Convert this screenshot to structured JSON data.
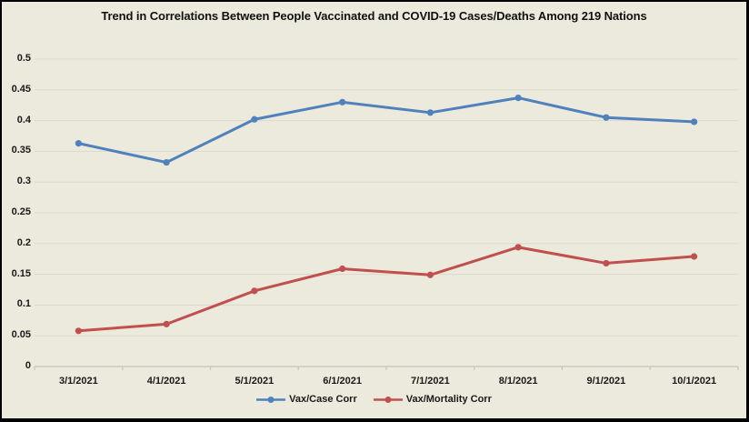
{
  "window": {
    "background_color": "#ECE9DD",
    "border_color": "#000000"
  },
  "chart_data": {
    "type": "line",
    "title": "Trend in Correlations Between People Vaccinated and COVID-19 Cases/Deaths Among 219 Nations",
    "categories": [
      "3/1/2021",
      "4/1/2021",
      "5/1/2021",
      "6/1/2021",
      "7/1/2021",
      "8/1/2021",
      "9/1/2021",
      "10/1/2021"
    ],
    "series": [
      {
        "name": "Vax/Case Corr",
        "color": "#4F81BD",
        "values": [
          0.363,
          0.332,
          0.402,
          0.43,
          0.413,
          0.437,
          0.405,
          0.398
        ]
      },
      {
        "name": "Vax/Mortality Corr",
        "color": "#C0504D",
        "values": [
          0.058,
          0.069,
          0.123,
          0.159,
          0.149,
          0.194,
          0.168,
          0.179
        ]
      }
    ],
    "xlabel": "",
    "ylabel": "",
    "ylim": [
      0,
      0.5
    ],
    "ytick_step": 0.05,
    "yticks": [
      "0.5",
      "0.45",
      "0.4",
      "0.35",
      "0.3",
      "0.25",
      "0.2",
      "0.15",
      "0.1",
      "0.05",
      "0"
    ],
    "grid": true,
    "gridline_color": "#DBD9CE",
    "axis_line_color": "#C6C5BB",
    "label_color": "#1a1a1a",
    "legend_position": "bottom"
  }
}
